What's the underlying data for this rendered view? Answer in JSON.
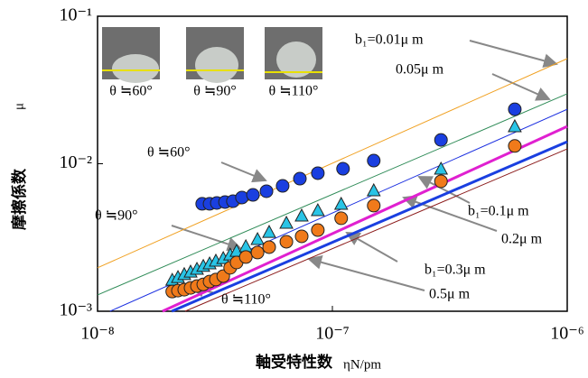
{
  "chart_data": {
    "type": "scatter",
    "log_x": true,
    "log_y": true,
    "xlabel": "軸受特性数",
    "xlabel_unit": "ηN/pm",
    "ylabel": "摩擦係数",
    "ylabel_unit": "μ",
    "xlim": [
      1e-08,
      1e-06
    ],
    "ylim": [
      0.001,
      0.1
    ],
    "xticks": [
      {
        "value": 1e-08,
        "label": "10⁻⁸"
      },
      {
        "value": 1e-07,
        "label": "10⁻⁷"
      },
      {
        "value": 1e-06,
        "label": "10⁻⁶"
      }
    ],
    "yticks": [
      {
        "value": 0.001,
        "label": "10⁻³"
      },
      {
        "value": 0.01,
        "label": "10⁻²"
      },
      {
        "value": 0.1,
        "label": "10⁻¹"
      }
    ],
    "inset_captions": [
      "θ ≒60°",
      "θ ≒90°",
      "θ ≒110°"
    ],
    "series": [
      {
        "label": "θ ≒60°",
        "marker": "circle",
        "color": "#1a3fe0",
        "x": [
          2.79e-08,
          3e-08,
          3.22e-08,
          3.49e-08,
          3.77e-08,
          4.12e-08,
          4.59e-08,
          5.24e-08,
          6.14e-08,
          7.27e-08,
          8.67e-08,
          1.11e-07,
          1.5e-07,
          2.9e-07,
          5.98e-07
        ],
        "values": [
          0.00535,
          0.00535,
          0.00542,
          0.0055,
          0.00557,
          0.0059,
          0.00615,
          0.00651,
          0.00708,
          0.00792,
          0.00863,
          0.00925,
          0.0105,
          0.0145,
          0.0234
        ]
      },
      {
        "label": "θ ≒90°",
        "marker": "triangle",
        "color": "#29c4e6",
        "x": [
          2.08e-08,
          2.2e-08,
          2.34e-08,
          2.49e-08,
          2.65e-08,
          2.82e-08,
          3e-08,
          3.19e-08,
          3.43e-08,
          3.67e-08,
          3.91e-08,
          4.28e-08,
          4.8e-08,
          5.38e-08,
          6.37e-08,
          7.4e-08,
          8.67e-08,
          1.09e-07,
          1.5e-07,
          2.9e-07,
          5.98e-07
        ],
        "values": [
          0.00161,
          0.00168,
          0.00176,
          0.00183,
          0.00191,
          0.002,
          0.00208,
          0.00217,
          0.00226,
          0.00239,
          0.00253,
          0.00272,
          0.00304,
          0.0034,
          0.00392,
          0.00439,
          0.00477,
          0.00527,
          0.00651,
          0.00912,
          0.0177
        ]
      },
      {
        "label": "θ ≒110°",
        "marker": "circle",
        "color": "#f07a1a",
        "x": [
          2.08e-08,
          2.2e-08,
          2.34e-08,
          2.49e-08,
          2.65e-08,
          2.82e-08,
          3e-08,
          3.19e-08,
          3.43e-08,
          3.67e-08,
          3.91e-08,
          4.28e-08,
          4.8e-08,
          5.38e-08,
          6.37e-08,
          7.4e-08,
          8.67e-08,
          1.09e-07,
          1.5e-07,
          2.9e-07,
          5.98e-07
        ],
        "values": [
          0.00136,
          0.00138,
          0.0014,
          0.00144,
          0.00148,
          0.00152,
          0.00159,
          0.00164,
          0.00173,
          0.00197,
          0.00214,
          0.00233,
          0.0025,
          0.00272,
          0.00296,
          0.00322,
          0.00355,
          0.00427,
          0.0052,
          0.0076,
          0.0132
        ]
      },
      {
        "label": "b₁=0.01μ m",
        "marker": "line",
        "color": "#f0a020",
        "width": 1,
        "x": [
          1e-08,
          1e-06
        ],
        "values": [
          0.00197,
          0.0516
        ]
      },
      {
        "label": "0.05μ m",
        "marker": "line",
        "color": "#2e8b57",
        "width": 1,
        "x": [
          1e-08,
          1e-06
        ],
        "values": [
          0.00129,
          0.0298
        ]
      },
      {
        "label": "b₁=0.1μ m",
        "marker": "line",
        "color": "#1a2ee0",
        "width": 1,
        "x": [
          1.13e-08,
          1e-06
        ],
        "values": [
          0.001,
          0.0234
        ]
      },
      {
        "label": "0.2μ m",
        "marker": "line",
        "color": "#e020d0",
        "width": 3,
        "x": [
          1.89e-08,
          1e-06
        ],
        "values": [
          0.001,
          0.0179
        ]
      },
      {
        "label": "b₁=0.3μ m",
        "marker": "line",
        "color": "#1a3fe0",
        "width": 3,
        "x": [
          2.07e-08,
          1e-06
        ],
        "values": [
          0.001,
          0.0141
        ]
      },
      {
        "label": "0.5μ m",
        "marker": "line",
        "color": "#8b1a1a",
        "width": 1,
        "x": [
          2.36e-08,
          1e-06
        ],
        "values": [
          0.001,
          0.0126
        ]
      }
    ]
  }
}
